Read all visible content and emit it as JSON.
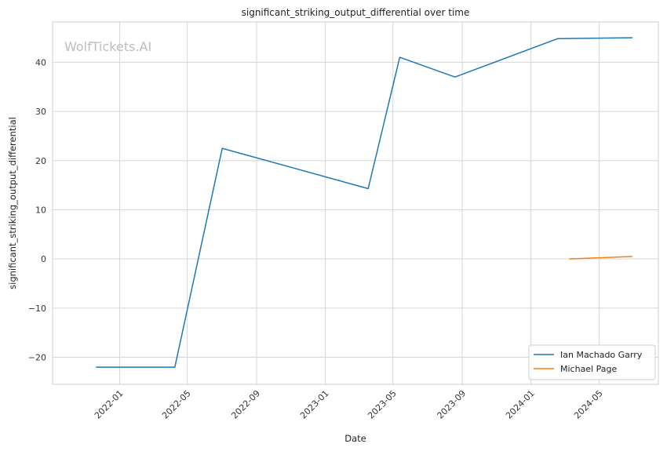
{
  "chart_data": {
    "type": "line",
    "title": "significant_striking_output_differential over time",
    "xlabel": "Date",
    "ylabel": "significant_striking_output_differential",
    "watermark": "WolfTickets.AI",
    "x_axis": {
      "kind": "date",
      "range": [
        "2021-09-04",
        "2024-08-14"
      ],
      "ticks": [
        "2022-01",
        "2022-05",
        "2022-09",
        "2023-01",
        "2023-05",
        "2023-09",
        "2024-01",
        "2024-05"
      ]
    },
    "y_axis": {
      "range": [
        -25.5,
        48.2
      ],
      "ticks": [
        -20,
        -10,
        0,
        10,
        20,
        30,
        40
      ],
      "tick_labels": [
        "−20",
        "−10",
        "0",
        "10",
        "20",
        "30",
        "40"
      ]
    },
    "grid": true,
    "legend": {
      "position": "lower-right"
    },
    "series": [
      {
        "name": "Ian Machado Garry",
        "color": "#1f77b4",
        "points": [
          {
            "x": "2021-11-20",
            "y": -22
          },
          {
            "x": "2022-04-09",
            "y": -22
          },
          {
            "x": "2022-07-02",
            "y": 22.5
          },
          {
            "x": "2023-03-18",
            "y": 14.3
          },
          {
            "x": "2023-05-13",
            "y": 41
          },
          {
            "x": "2023-08-19",
            "y": 37
          },
          {
            "x": "2024-02-17",
            "y": 44.8
          },
          {
            "x": "2024-06-29",
            "y": 45
          }
        ]
      },
      {
        "name": "Michael Page",
        "color": "#ff7f0e",
        "points": [
          {
            "x": "2024-03-09",
            "y": 0
          },
          {
            "x": "2024-06-29",
            "y": 0.5
          }
        ]
      }
    ]
  }
}
